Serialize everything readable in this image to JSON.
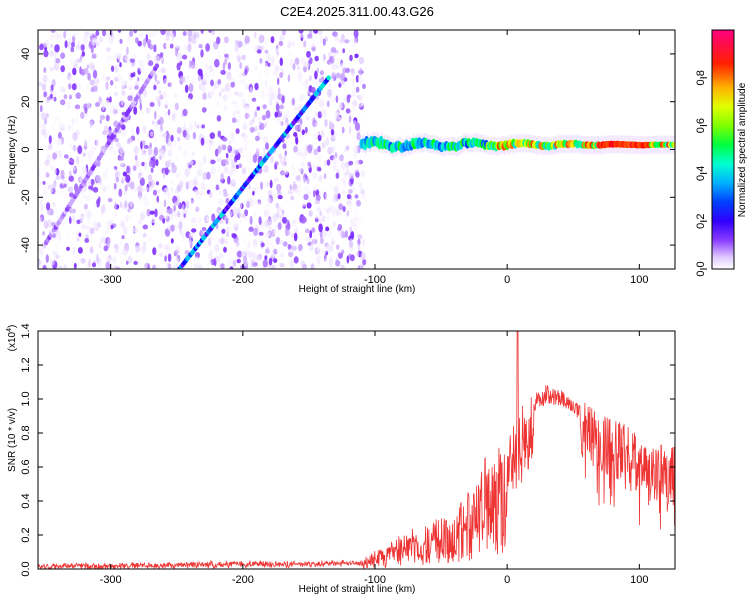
{
  "title": "C2E4.2025.311.00.43.G26",
  "chart_data": [
    {
      "type": "heatmap",
      "xlabel": "Height of straight line (km)",
      "ylabel": "Frequency (Hz)",
      "xlim": [
        -355,
        127
      ],
      "ylim": [
        -50,
        50
      ],
      "xticks": [
        -300,
        -200,
        -100,
        0,
        100
      ],
      "yticks": [
        -40,
        -20,
        0,
        20,
        40
      ],
      "colorbar": {
        "label": "Normalized spectral amplitude",
        "range": [
          0,
          1
        ],
        "ticks": [
          "0.0",
          "0.2",
          "0.4",
          "0.6",
          "0.8"
        ],
        "colormap": [
          "#ffffff",
          "#e8d8ff",
          "#a060ff",
          "#6000ff",
          "#0000ff",
          "#00b0ff",
          "#00ffc0",
          "#00ff00",
          "#c0ff00",
          "#ffff00",
          "#ff8000",
          "#ff0000",
          "#ff0080"
        ]
      },
      "features": [
        {
          "name": "noise-streak-1",
          "x": [
            -350,
            -265
          ],
          "y": [
            -40,
            35
          ],
          "amplitude": 0.15
        },
        {
          "name": "meteor-streak",
          "x": [
            -248,
            -135
          ],
          "y": [
            -50,
            30
          ],
          "amplitude": 0.35
        },
        {
          "name": "carrier-band",
          "x": [
            -110,
            127
          ],
          "y": [
            2,
            2
          ],
          "amplitude": 0.9
        }
      ]
    },
    {
      "type": "line",
      "xlabel": "Height of straight line (km)",
      "ylabel": "SNR (10 * v/v)",
      "yscale_label": "(x10",
      "yscale_exp": "4",
      "xlim": [
        -355,
        127
      ],
      "ylim": [
        0,
        1.4
      ],
      "xticks": [
        -300,
        -200,
        -100,
        0,
        100
      ],
      "yticks": [
        "0.0",
        "0.2",
        "0.4",
        "0.6",
        "0.8",
        "1.0",
        "1.2",
        "1.4"
      ],
      "series": [
        {
          "name": "SNR",
          "color": "#ee3333",
          "x": [
            -355,
            -300,
            -200,
            -150,
            -110,
            -90,
            -70,
            -50,
            -30,
            -20,
            -10,
            0,
            10,
            20,
            30,
            40,
            50,
            60,
            70,
            80,
            90,
            100,
            110,
            120,
            127
          ],
          "y": [
            0.03,
            0.03,
            0.04,
            0.04,
            0.05,
            0.15,
            0.25,
            0.3,
            0.45,
            0.6,
            0.75,
            0.8,
            0.95,
            1.02,
            1.08,
            1.05,
            1.0,
            0.98,
            0.92,
            0.88,
            0.85,
            0.8,
            0.76,
            0.74,
            0.72
          ]
        }
      ]
    }
  ]
}
